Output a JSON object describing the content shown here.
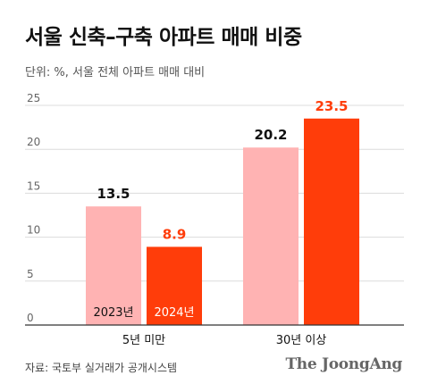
{
  "header": {
    "title": "서울 신축–구축 아파트 매매 비중",
    "subtitle": "단위: %, 서울 전체 아파트 매매 대비"
  },
  "footer": {
    "source": "자료: 국토부 실거래가 공개시스템",
    "brand": "The JoongAng"
  },
  "colors": {
    "series_2023": "#ffb3b3",
    "series_2024": "#ff3d0a",
    "label_2023": "#111111",
    "label_2024": "#ff3d0a",
    "grid": "#dcdcdc",
    "axis": "#333333"
  },
  "chart_data": {
    "type": "bar",
    "categories": [
      "5년 미만",
      "30년 이상"
    ],
    "series": [
      {
        "name": "2023년",
        "values": [
          13.5,
          20.2
        ]
      },
      {
        "name": "2024년",
        "values": [
          8.9,
          23.5
        ]
      }
    ],
    "yticks": [
      "0",
      "5",
      "10",
      "15",
      "20",
      "25"
    ],
    "ylim": [
      0,
      25
    ],
    "grid": true,
    "legend": "inside-first-group-bars"
  }
}
